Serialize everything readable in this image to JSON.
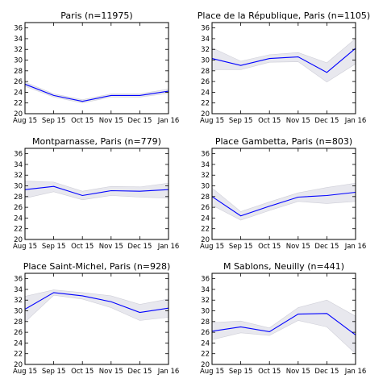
{
  "chart_data": [
    {
      "type": "line",
      "title": "Paris (n=11975)",
      "x": [
        "Aug 15",
        "Sep 15",
        "Oct 15",
        "Nov 15",
        "Dec 15",
        "Jan 16"
      ],
      "values": [
        25.5,
        23.4,
        22.3,
        23.4,
        23.4,
        24.2
      ],
      "band_lower": [
        25.1,
        23.1,
        22.0,
        23.1,
        23.1,
        23.8
      ],
      "band_upper": [
        25.9,
        23.7,
        22.6,
        23.7,
        23.7,
        24.6
      ],
      "ylim": [
        20,
        37
      ],
      "yticks": [
        20,
        22,
        24,
        26,
        28,
        30,
        32,
        34,
        36
      ],
      "xlabel": "",
      "ylabel": ""
    },
    {
      "type": "line",
      "title": "Place de la République, Paris (n=1105)",
      "x": [
        "Aug 15",
        "Sep 15",
        "Oct 15",
        "Nov 15",
        "Dec 15",
        "Jan 16"
      ],
      "values": [
        30.3,
        29.0,
        30.3,
        30.6,
        27.7,
        32.2
      ],
      "band_lower": [
        28.2,
        28.2,
        29.6,
        29.7,
        25.9,
        29.3
      ],
      "band_upper": [
        32.3,
        29.8,
        31.0,
        31.4,
        29.5,
        34.0
      ],
      "ylim": [
        20,
        37
      ],
      "yticks": [
        20,
        22,
        24,
        26,
        28,
        30,
        32,
        34,
        36
      ],
      "xlabel": "",
      "ylabel": ""
    },
    {
      "type": "line",
      "title": "Montparnasse, Paris (n=779)",
      "x": [
        "Aug 15",
        "Sep 15",
        "Oct 15",
        "Nov 15",
        "Dec 15",
        "Jan 16"
      ],
      "values": [
        29.3,
        29.9,
        28.2,
        29.1,
        29.0,
        29.3
      ],
      "band_lower": [
        27.7,
        28.9,
        27.4,
        28.2,
        27.9,
        27.7
      ],
      "band_upper": [
        30.9,
        30.7,
        29.0,
        29.9,
        29.8,
        30.5
      ],
      "ylim": [
        20,
        37
      ],
      "yticks": [
        20,
        22,
        24,
        26,
        28,
        30,
        32,
        34,
        36
      ],
      "xlabel": "",
      "ylabel": ""
    },
    {
      "type": "line",
      "title": "Place Gambetta, Paris (n=803)",
      "x": [
        "Aug 15",
        "Sep 15",
        "Oct 15",
        "Nov 15",
        "Dec 15",
        "Jan 16"
      ],
      "values": [
        28.0,
        24.4,
        26.2,
        27.9,
        28.2,
        28.8
      ],
      "band_lower": [
        26.4,
        23.6,
        25.4,
        27.1,
        26.7,
        27.1
      ],
      "band_upper": [
        29.6,
        25.2,
        27.0,
        28.7,
        29.7,
        30.5
      ],
      "ylim": [
        20,
        37
      ],
      "yticks": [
        20,
        22,
        24,
        26,
        28,
        30,
        32,
        34,
        36
      ],
      "xlabel": "",
      "ylabel": ""
    },
    {
      "type": "line",
      "title": "Place Saint-Michel, Paris (n=928)",
      "x": [
        "Aug 15",
        "Sep 15",
        "Oct 15",
        "Nov 15",
        "Dec 15",
        "Jan 16"
      ],
      "values": [
        30.3,
        33.4,
        32.8,
        31.7,
        29.7,
        30.5
      ],
      "band_lower": [
        27.9,
        32.9,
        32.2,
        30.6,
        28.2,
        28.8
      ],
      "band_upper": [
        32.7,
        33.9,
        33.4,
        32.8,
        31.2,
        32.2
      ],
      "ylim": [
        20,
        37
      ],
      "yticks": [
        20,
        22,
        24,
        26,
        28,
        30,
        32,
        34,
        36
      ],
      "xlabel": "",
      "ylabel": ""
    },
    {
      "type": "line",
      "title": "M Sablons, Neuilly (n=441)",
      "x": [
        "Aug 15",
        "Sep 15",
        "Oct 15",
        "Nov 15",
        "Dec 15",
        "Jan 16"
      ],
      "values": [
        26.2,
        27.0,
        26.1,
        29.4,
        29.5,
        25.5
      ],
      "band_lower": [
        24.6,
        25.9,
        25.4,
        28.2,
        27.0,
        22.0
      ],
      "band_upper": [
        27.8,
        28.1,
        26.8,
        30.6,
        32.0,
        29.0
      ],
      "ylim": [
        20,
        37
      ],
      "yticks": [
        20,
        22,
        24,
        26,
        28,
        30,
        32,
        34,
        36
      ],
      "xlabel": "",
      "ylabel": ""
    }
  ],
  "colors": {
    "line": "#0000ff",
    "band": "#e8e8ee",
    "band_edge": "#cfcfd8",
    "axis": "#000000",
    "background": "#ffffff"
  }
}
